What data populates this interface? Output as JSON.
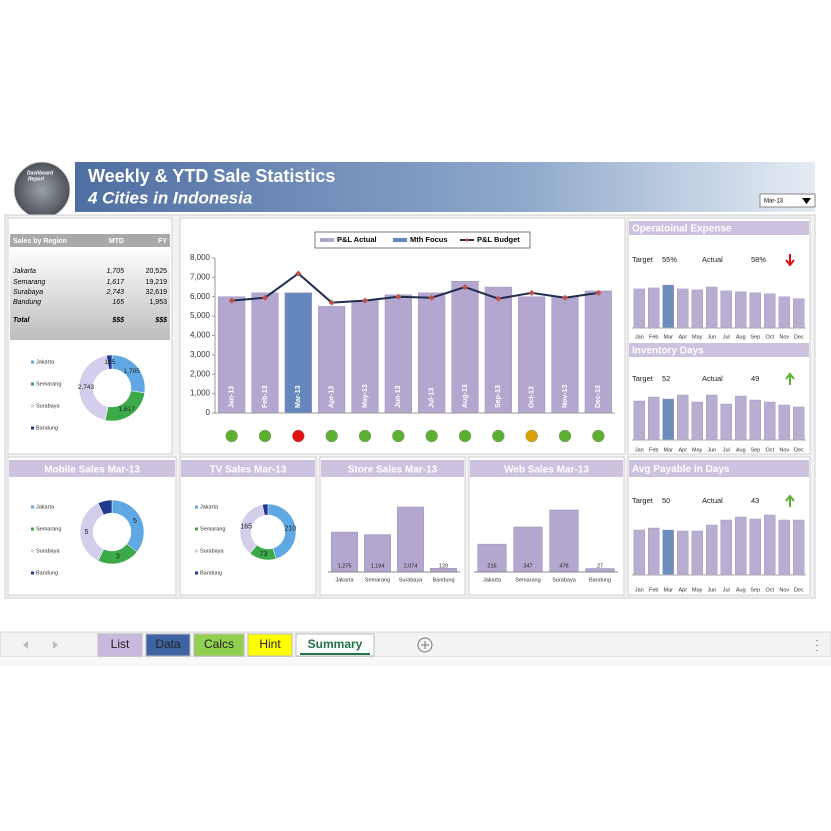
{
  "header": {
    "title": "Weekly & YTD Sale Statistics",
    "subtitle": "4 Cities in Indonesia",
    "logo_text": [
      "Dashboard",
      "Report"
    ],
    "period": "Mar-13"
  },
  "region_table": {
    "columns": [
      "Sales by Region",
      "MTD",
      "FY"
    ],
    "rows": [
      [
        "Jakarta",
        "1,705",
        "20,525"
      ],
      [
        "Semarang",
        "1,617",
        "19,219"
      ],
      [
        "Surabaya",
        "2,743",
        "32,619"
      ],
      [
        "Bandung",
        "165",
        "1,953"
      ],
      [
        "Total",
        "$$$",
        "$$$"
      ]
    ]
  },
  "region_donut": {
    "type": "donut",
    "categories": [
      "Jakarta",
      "Semarang",
      "Surabaya",
      "Bandung"
    ],
    "colors": [
      "#5fa8e3",
      "#3daa4a",
      "#d4cdeb",
      "#1f3a8f"
    ],
    "values": [
      1705,
      1617,
      2743,
      165
    ],
    "value_labels": [
      "1,705",
      "1,617",
      "2,743",
      "165"
    ]
  },
  "main_chart": {
    "type": "bar",
    "categories": [
      "Jan-13",
      "Feb-13",
      "Mar-13",
      "Apr-13",
      "May-13",
      "Jun-13",
      "Jul-13",
      "Aug-13",
      "Sep-13",
      "Oct-13",
      "Nov-13",
      "Dec-13"
    ],
    "series": [
      {
        "name": "P&L Actual",
        "color": "#b3a7cf",
        "values": [
          6000,
          6200,
          6200,
          5500,
          5800,
          6100,
          6200,
          6800,
          6500,
          6000,
          6000,
          6300
        ]
      },
      {
        "name": "Mth Focus",
        "color": "#6488bd",
        "values": [
          null,
          null,
          6200,
          null,
          null,
          null,
          null,
          null,
          null,
          null,
          null,
          null
        ]
      },
      {
        "name": "P&L Budget",
        "type": "line",
        "color": "#1f2d4f",
        "marker_color": "#c0504d",
        "values": [
          5800,
          5950,
          7200,
          5700,
          5800,
          6000,
          5950,
          6500,
          5900,
          6200,
          5950,
          6200
        ]
      }
    ],
    "ylim": [
      0,
      8000
    ],
    "yticks": [
      0,
      {
        "value": 1000,
        "label": "1,000"
      },
      {
        "value": 2000,
        "label": "2,000"
      },
      {
        "value": 3000,
        "label": "3,000"
      },
      {
        "value": 4000,
        "label": "4,000"
      },
      {
        "value": 5000,
        "label": "5,000"
      },
      {
        "value": 6000,
        "label": "6,000"
      },
      {
        "value": 7000,
        "label": "7,000"
      },
      {
        "value": 8000,
        "label": "8,000"
      }
    ],
    "status_colors": [
      "#5cb030",
      "#5cb030",
      "#e01010",
      "#5cb030",
      "#5cb030",
      "#5cb030",
      "#5cb030",
      "#5cb030",
      "#5cb030",
      "#d8a000",
      "#5cb030",
      "#5cb030"
    ]
  },
  "kpi_panels": [
    {
      "title": "Operatoinal Expense",
      "target_label": "Target",
      "target": "55%",
      "actual_label": "Actual",
      "actual": "58%",
      "trend": "down",
      "trend_color": "#e01010",
      "categories": [
        "Jan",
        "Feb",
        "Mar",
        "Apr",
        "May",
        "Jun",
        "Jul",
        "Aug",
        "Sep",
        "Oct",
        "Nov",
        "Dec"
      ],
      "values": [
        40,
        41,
        44,
        40,
        39,
        42,
        38,
        37,
        36,
        35,
        32,
        30
      ],
      "colors": [
        "#b8aed2",
        "#b8aed2",
        "#6c8ebf",
        "#b8aed2",
        "#b8aed2",
        "#b8aed2",
        "#b8aed2",
        "#b8aed2",
        "#b8aed2",
        "#b8aed2",
        "#b8aed2",
        "#b8aed2"
      ]
    },
    {
      "title": "Inventory Days",
      "target_label": "Target",
      "target": 52,
      "actual_label": "Actual",
      "actual": 49,
      "trend": "up",
      "trend_color": "#5cb030",
      "categories": [
        "Jan",
        "Feb",
        "Mar",
        "Apr",
        "May",
        "Jun",
        "Jul",
        "Aug",
        "Sep",
        "Oct",
        "Nov",
        "Dec"
      ],
      "values": [
        39,
        43,
        41,
        45,
        38,
        45,
        36,
        44,
        40,
        38,
        35,
        33
      ],
      "colors": [
        "#b8aed2",
        "#b8aed2",
        "#6c8ebf",
        "#b8aed2",
        "#b8aed2",
        "#b8aed2",
        "#b8aed2",
        "#b8aed2",
        "#b8aed2",
        "#b8aed2",
        "#b8aed2",
        "#b8aed2"
      ]
    },
    {
      "title": "Avg Payable in Days",
      "target_label": "Target",
      "target": 50,
      "actual_label": "Actual",
      "actual": 43,
      "trend": "up",
      "trend_color": "#5cb030",
      "categories": [
        "Jan",
        "Feb",
        "Mar",
        "Apr",
        "May",
        "Jun",
        "Jul",
        "Aug",
        "Sep",
        "Oct",
        "Nov",
        "Dec"
      ],
      "values": [
        45,
        47,
        45,
        44,
        44,
        50,
        55,
        58,
        56,
        60,
        55,
        55
      ],
      "colors": [
        "#b8aed2",
        "#b8aed2",
        "#6c8ebf",
        "#b8aed2",
        "#b8aed2",
        "#b8aed2",
        "#b8aed2",
        "#b8aed2",
        "#b8aed2",
        "#b8aed2",
        "#b8aed2",
        "#b8aed2"
      ]
    }
  ],
  "donut_panels": [
    {
      "title": "Mobile Sales Mar-13",
      "type": "donut",
      "categories": [
        "Jakarta",
        "Semarang",
        "Surabaya",
        "Bandung"
      ],
      "colors": [
        "#5fa8e3",
        "#3daa4a",
        "#d4cdeb",
        "#1f3a8f"
      ],
      "values": [
        5,
        3,
        5,
        1
      ],
      "show_labels": [
        true,
        true,
        true,
        false
      ]
    },
    {
      "title": "TV Sales Mar-13",
      "type": "donut",
      "categories": [
        "Jakarta",
        "Semarang",
        "Surabaya",
        "Bandung"
      ],
      "colors": [
        "#5fa8e3",
        "#3daa4a",
        "#d4cdeb",
        "#1f3a8f"
      ],
      "values": [
        210,
        73,
        165,
        15
      ],
      "show_labels": [
        true,
        true,
        true,
        false
      ]
    }
  ],
  "bar_panels": [
    {
      "title": "Store Sales Mar-13",
      "type": "bar",
      "color": "#b3a7cf",
      "categories": [
        "Jakarta",
        "Semarang",
        "Surabaya",
        "Bandung"
      ],
      "values": [
        1275,
        1194,
        2074,
        120
      ],
      "value_labels": [
        "1,275",
        "1,194",
        "2,074",
        "120"
      ]
    },
    {
      "title": "Web Sales Mar-13",
      "type": "bar",
      "color": "#b3a7cf",
      "categories": [
        "Jakarta",
        "Semarang",
        "Surabaya",
        "Bandung"
      ],
      "values": [
        215,
        347,
        478,
        27
      ]
    }
  ],
  "sheet_tabs": [
    {
      "label": "List",
      "color": "#c9b9df"
    },
    {
      "label": "Data",
      "color": "#3f63a3"
    },
    {
      "label": "Calcs",
      "color": "#92d050"
    },
    {
      "label": "Hint",
      "color": "#ffff00"
    },
    {
      "label": "Summary",
      "color": "#ffffff",
      "active": true
    }
  ]
}
